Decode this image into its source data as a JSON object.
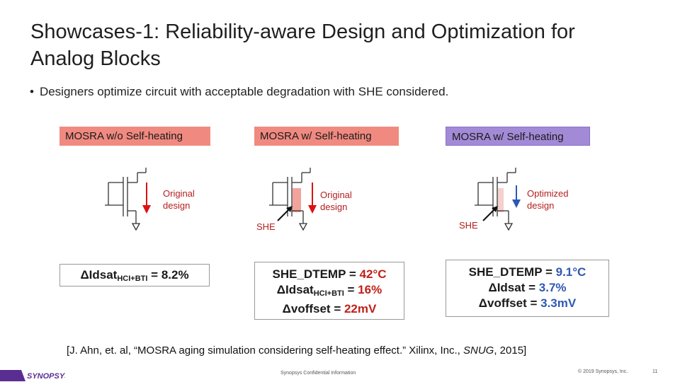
{
  "title": {
    "line1": "Showcases-1: Reliability-aware Design and Optimization for",
    "line2": "Analog Blocks"
  },
  "bullet": {
    "symbol": "•",
    "text": "Designers optimize circuit with acceptable degradation with SHE considered."
  },
  "columns": [
    {
      "header": "MOSRA w/o Self-heating",
      "label_line1": "Original",
      "label_line2": "design",
      "result": {
        "prefix": "ΔIdsat",
        "sub": "HCI+BTI",
        "suffix": " = ",
        "value": "8.2%"
      }
    },
    {
      "header": "MOSRA w/ Self-heating",
      "label_line1": "Original",
      "label_line2": "design",
      "she": "SHE",
      "result": {
        "l1_prefix": "SHE_DTEMP = ",
        "l1_value": "42°C",
        "l2_prefix": "ΔIdsat",
        "l2_sub": "HCI+BTI",
        "l2_mid": " = ",
        "l2_value": "16%",
        "l3_prefix": "Δvoffset = ",
        "l3_value": "22mV"
      }
    },
    {
      "header": "MOSRA w/ Self-heating",
      "label_line1": "Optimized",
      "label_line2": "design",
      "she": "SHE",
      "result": {
        "l1_prefix": "SHE_DTEMP = ",
        "l1_value": "9.1°C",
        "l2_prefix": "ΔIdsat = ",
        "l2_value": "3.7%",
        "l3_prefix": "Δvoffset = ",
        "l3_value": "3.3mV"
      }
    }
  ],
  "reference": {
    "pre": "[J. Ahn, et. al, “MOSRA aging simulation considering self-heating effect.” Xilinx, Inc., ",
    "venue": "SNUG",
    "post": ", 2015]"
  },
  "footer": {
    "logo_text": "SYNOPSYS",
    "center": "Synopsys Confidential Information",
    "copyright": "© 2019 Synopsys, Inc.",
    "page": "11"
  },
  "colors": {
    "header_red": "#f08a80",
    "header_purple": "#a38ad6",
    "value_red": "#c0211b",
    "value_blue": "#2e58b5",
    "logo_purple": "#5a2d91"
  }
}
